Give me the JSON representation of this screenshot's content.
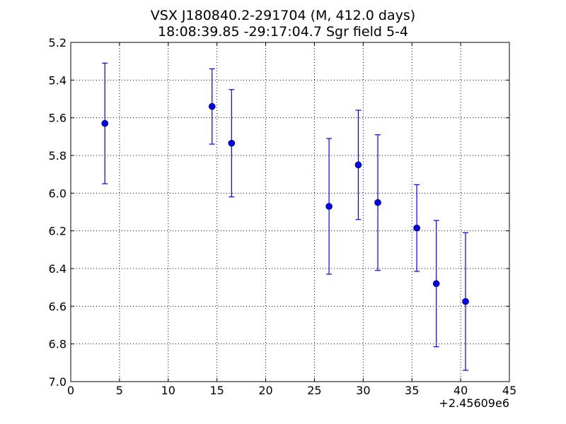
{
  "chart_data": {
    "type": "scatter",
    "title": "VSX J180840.2-291704 (M, 412.0 days)",
    "subtitle": "18:08:39.85 -29:17:04.7 Sgr field 5-4",
    "xlabel": "",
    "ylabel": "",
    "x_offset_label": "+2.45609e6",
    "xlim": [
      0,
      45
    ],
    "ylim": [
      5.2,
      7.0
    ],
    "y_inverted": true,
    "grid": true,
    "x_ticks": [
      "0",
      "5",
      "10",
      "15",
      "20",
      "25",
      "30",
      "35",
      "40",
      "45"
    ],
    "y_ticks": [
      "5.2",
      "5.4",
      "5.6",
      "5.8",
      "6.0",
      "6.2",
      "6.4",
      "6.6",
      "6.8",
      "7.0"
    ],
    "colors": {
      "series": "#0000ff",
      "grid": "#000000"
    },
    "series": [
      {
        "points": [
          {
            "x": 3.5,
            "y": 5.63,
            "err": 0.32
          },
          {
            "x": 14.5,
            "y": 5.54,
            "err": 0.2
          },
          {
            "x": 16.5,
            "y": 5.735,
            "err": 0.285
          },
          {
            "x": 26.5,
            "y": 6.07,
            "err": 0.36
          },
          {
            "x": 29.5,
            "y": 5.85,
            "err": 0.29
          },
          {
            "x": 31.5,
            "y": 6.05,
            "err": 0.36
          },
          {
            "x": 35.5,
            "y": 6.185,
            "err": 0.23
          },
          {
            "x": 37.5,
            "y": 6.48,
            "err": 0.335
          },
          {
            "x": 40.5,
            "y": 6.575,
            "err": 0.365
          }
        ]
      }
    ]
  }
}
